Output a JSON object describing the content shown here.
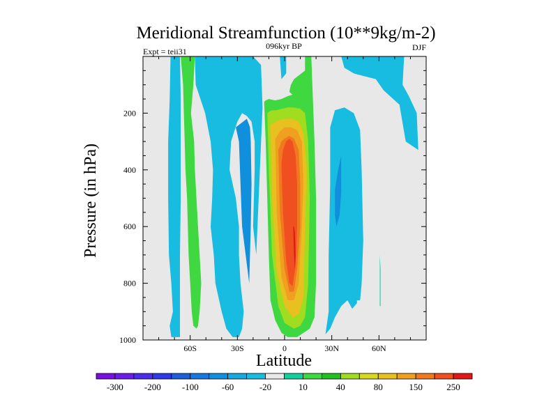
{
  "chart_data": {
    "type": "heatmap",
    "title": "Meridional Streamfunction (10**9kg/m-2)",
    "left_string": "Expt = teii31",
    "center_string": "096kyr BP",
    "right_string": "DJF",
    "xlabel": "Latitude",
    "ylabel": "Pressure (in hPa)",
    "xlim": [
      -90,
      90
    ],
    "ylim": [
      0,
      1000
    ],
    "y_reversed": true,
    "x_ticks": [
      {
        "value": -60,
        "label": "60S"
      },
      {
        "value": -30,
        "label": "30S"
      },
      {
        "value": 0,
        "label": "0"
      },
      {
        "value": 30,
        "label": "30N"
      },
      {
        "value": 60,
        "label": "60N"
      }
    ],
    "y_ticks": [
      {
        "value": 200,
        "label": "200"
      },
      {
        "value": 400,
        "label": "400"
      },
      {
        "value": 600,
        "label": "600"
      },
      {
        "value": 800,
        "label": "800"
      },
      {
        "value": 1000,
        "label": "1000"
      }
    ],
    "colorbar": {
      "colors": [
        "#7a10e0",
        "#6a1ee6",
        "#4a2cea",
        "#2e3ae6",
        "#1e5ed8",
        "#1478de",
        "#1090dc",
        "#18a8e0",
        "#18bce0",
        "#e8e8e8",
        "#10d0a0",
        "#40d840",
        "#20c020",
        "#a0dc20",
        "#d8d820",
        "#e8c020",
        "#f0a020",
        "#f07820",
        "#f05020",
        "#e01818"
      ],
      "labels": [
        {
          "boundary": 1,
          "label": "-300"
        },
        {
          "boundary": 3,
          "label": "-200"
        },
        {
          "boundary": 5,
          "label": "-100"
        },
        {
          "boundary": 7,
          "label": "-60"
        },
        {
          "boundary": 9,
          "label": "-20"
        },
        {
          "boundary": 11,
          "label": "10"
        },
        {
          "boundary": 13,
          "label": "40"
        },
        {
          "boundary": 15,
          "label": "80"
        },
        {
          "boundary": 17,
          "label": "150"
        },
        {
          "boundary": 19,
          "label": "250"
        }
      ]
    },
    "features": [
      {
        "name": "sh-negative-cell-far",
        "color": "#18bce0",
        "lat": [
          -72.5,
          -73,
          -74,
          -74,
          -73.5,
          -72,
          -71,
          -73,
          -72,
          -66.5,
          -66.5,
          -66.5,
          -66.5,
          -66,
          -66,
          -66,
          -66.5
        ],
        "p": [
          0,
          150,
          300,
          500,
          700,
          800,
          900,
          950,
          990,
          990,
          950,
          900,
          700,
          500,
          300,
          150,
          0
        ]
      },
      {
        "name": "sh-positive-cell",
        "color": "#40d840",
        "lat": [
          -66,
          -64.5,
          -64,
          -63.5,
          -63,
          -62,
          -61.5,
          -61,
          -60,
          -59,
          -58,
          -56,
          -55,
          -54,
          -53,
          -55,
          -57,
          -57.5,
          -59.5,
          -58,
          -57,
          -62.5
        ],
        "p": [
          0,
          100,
          200,
          300,
          400,
          500,
          600,
          700,
          800,
          900,
          950,
          960,
          950,
          900,
          800,
          600,
          400,
          300,
          200,
          100,
          0,
          0
        ]
      },
      {
        "name": "sh-negative-cell-mid",
        "color": "#18bce0",
        "lat": [
          -57,
          -56.5,
          -50.5,
          -47,
          -45.5,
          -46,
          -47,
          -45,
          -44,
          -40,
          -37,
          -33,
          -29,
          -27,
          -26,
          -28,
          -29,
          -29,
          -31,
          -35,
          -34,
          -30,
          -27,
          -24,
          -21,
          -19,
          -19,
          -19.5,
          -20,
          -18,
          -14,
          -15,
          -20
        ],
        "p": [
          0,
          100,
          200,
          300,
          400,
          500,
          600,
          700,
          800,
          900,
          960,
          990,
          990,
          960,
          900,
          800,
          700,
          600,
          500,
          400,
          300,
          230,
          200,
          210,
          230,
          300,
          400,
          500,
          600,
          700,
          180,
          30,
          0
        ]
      },
      {
        "name": "sh-negative-inner",
        "color": "#1090dc",
        "lat": [
          -31,
          -29,
          -28,
          -27,
          -22.5,
          -21.5,
          -21,
          -21.5,
          -22,
          -24
        ],
        "p": [
          250,
          300,
          450,
          600,
          800,
          600,
          450,
          300,
          250,
          220
        ]
      },
      {
        "name": "tropical-positive-outer",
        "color": "#40d840",
        "lat": [
          -13,
          -12,
          -11,
          -10,
          -9,
          -6,
          -2,
          2,
          8,
          12,
          16,
          19,
          20,
          20,
          19,
          18,
          17,
          18,
          17,
          16,
          13,
          13,
          6,
          4,
          3,
          5,
          2,
          -2,
          -6,
          -10,
          -12
        ],
        "p": [
          160,
          300,
          500,
          700,
          860,
          930,
          975,
          990,
          990,
          975,
          960,
          920,
          800,
          500,
          300,
          150,
          0,
          0,
          0,
          0,
          0,
          50,
          80,
          100,
          125,
          135,
          140,
          150,
          155,
          150,
          155
        ]
      },
      {
        "name": "tropical-positive-2",
        "color": "#a0dc20",
        "lat": [
          -11,
          -10,
          -8,
          -4,
          0,
          6,
          10,
          13,
          15,
          16,
          15,
          13,
          10,
          6,
          2,
          -2,
          -5,
          -8,
          -10
        ],
        "p": [
          200,
          400,
          700,
          880,
          940,
          960,
          950,
          920,
          800,
          500,
          300,
          200,
          185,
          180,
          180,
          185,
          190,
          190,
          195
        ]
      },
      {
        "name": "tropical-positive-3",
        "color": "#e8c020",
        "lat": [
          -9,
          -8,
          -5,
          0,
          5,
          9,
          12,
          13,
          14,
          12,
          9,
          5,
          0,
          -4,
          -7
        ],
        "p": [
          240,
          500,
          760,
          880,
          920,
          910,
          850,
          600,
          400,
          270,
          230,
          220,
          220,
          225,
          235
        ]
      },
      {
        "name": "tropical-positive-4",
        "color": "#f0a020",
        "lat": [
          -6,
          -5,
          -2,
          2,
          6,
          9,
          11,
          12,
          11,
          8,
          4,
          0,
          -3
        ],
        "p": [
          290,
          550,
          780,
          860,
          860,
          800,
          600,
          450,
          300,
          260,
          250,
          250,
          265
        ]
      },
      {
        "name": "tropical-positive-5",
        "color": "#f07820",
        "lat": [
          -4,
          -3,
          0,
          3,
          6,
          8,
          10,
          10,
          9,
          6,
          3,
          0,
          -2
        ],
        "p": [
          330,
          550,
          750,
          830,
          830,
          750,
          600,
          450,
          330,
          290,
          280,
          290,
          300
        ]
      },
      {
        "name": "tropical-positive-core",
        "color": "#f05020",
        "lat": [
          -2,
          -1,
          1,
          3,
          5,
          7,
          8,
          8,
          7,
          5,
          3,
          1,
          -1
        ],
        "p": [
          380,
          550,
          720,
          800,
          810,
          740,
          600,
          450,
          350,
          300,
          290,
          300,
          330
        ]
      },
      {
        "name": "tropical-positive-max",
        "color": "#e01818",
        "lat": [
          5.5,
          6,
          6.5,
          7,
          6.5,
          6
        ],
        "p": [
          600,
          700,
          750,
          700,
          620,
          600
        ]
      },
      {
        "name": "nh-negative-cell",
        "color": "#18bce0",
        "lat": [
          26,
          28,
          28,
          29,
          29,
          32,
          38,
          44,
          48,
          49,
          50,
          49,
          48,
          46,
          46,
          43,
          40,
          36,
          32,
          29
        ],
        "p": [
          980,
          900,
          700,
          450,
          250,
          190,
          180,
          200,
          260,
          400,
          650,
          800,
          860,
          860,
          870,
          890,
          860,
          880,
          920,
          960
        ]
      },
      {
        "name": "nh-negative-inner",
        "color": "#1090dc",
        "lat": [
          32,
          34,
          36,
          36,
          35,
          33,
          32
        ],
        "p": [
          470,
          400,
          350,
          480,
          560,
          600,
          560
        ]
      },
      {
        "name": "nh-upper-negative",
        "color": "#18bce0",
        "lat": [
          36,
          38,
          44,
          58,
          63,
          73,
          77,
          85,
          84,
          79,
          75,
          76,
          74,
          68,
          62,
          57,
          51,
          44,
          40,
          36
        ],
        "p": [
          0,
          40,
          60,
          80,
          120,
          170,
          300,
          330,
          200,
          140,
          100,
          0,
          0,
          0,
          0,
          0,
          0,
          0,
          0,
          0
        ]
      },
      {
        "name": "nh-top-strip",
        "color": "#18bce0",
        "lat": [
          -3,
          -2,
          1,
          1,
          0
        ],
        "p": [
          0,
          80,
          60,
          0,
          0
        ]
      },
      {
        "name": "nh-small-positive",
        "color": "#10d0a0",
        "lat": [
          60.5,
          61,
          61,
          60.5,
          60.5
        ],
        "p": [
          700,
          750,
          880,
          880,
          700
        ]
      }
    ]
  }
}
